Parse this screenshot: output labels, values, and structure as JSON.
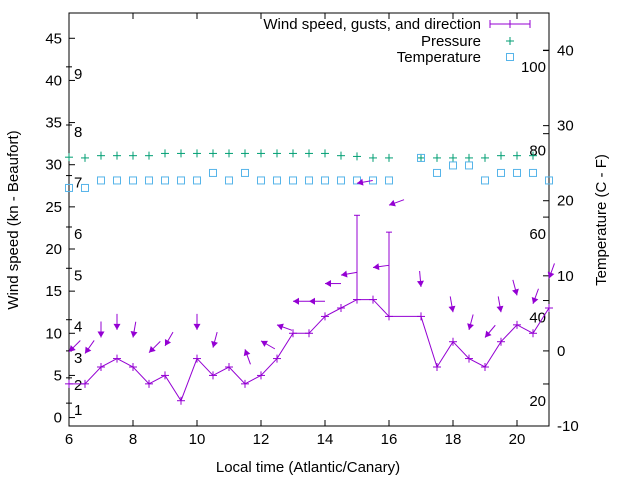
{
  "chart_data": {
    "type": "line",
    "title": "",
    "xlabel": "Local time (Atlantic/Canary)",
    "ylabel": "Wind speed (kn - Beaufort)",
    "y2label": "Temperature (C - F)",
    "xlim": [
      6,
      21
    ],
    "ylim": [
      -1,
      48
    ],
    "y2lim": [
      -10,
      45
    ],
    "xticks": [
      6,
      8,
      10,
      12,
      14,
      16,
      18,
      20
    ],
    "yticks": [
      0,
      5,
      10,
      15,
      20,
      25,
      30,
      35,
      40,
      45
    ],
    "y2ticks": [
      -10,
      0,
      10,
      20,
      30,
      40
    ],
    "beaufort_labels": [
      {
        "label": "1",
        "kn": 1
      },
      {
        "label": "2",
        "kn": 4
      },
      {
        "label": "3",
        "kn": 7.2
      },
      {
        "label": "4",
        "kn": 10.9
      },
      {
        "label": "5",
        "kn": 17
      },
      {
        "label": "6",
        "kn": 21.9
      },
      {
        "label": "7",
        "kn": 28
      },
      {
        "label": "8",
        "kn": 34
      },
      {
        "label": "9",
        "kn": 40.9
      }
    ],
    "fahrenheit_labels": [
      "20",
      "40",
      "60",
      "80",
      "100"
    ],
    "legend": {
      "placement": "top-right",
      "entries": [
        "Wind speed, gusts, and direction",
        "Pressure",
        "Temperature"
      ]
    },
    "colors": {
      "wind": "#9400d3",
      "pressure": "#009e73",
      "temperature": "#56b4e9"
    },
    "wind": {
      "x": [
        6,
        6.5,
        7,
        7.5,
        8,
        8.5,
        9,
        9.5,
        10,
        10.5,
        11,
        11.5,
        12,
        12.5,
        13,
        13.5,
        14,
        14.5,
        15,
        15.5,
        16,
        17,
        17.5,
        18,
        18.5,
        19,
        19.5,
        20,
        20.5,
        21
      ],
      "speed": [
        4,
        4,
        6,
        7,
        6,
        4,
        5,
        2,
        7,
        5,
        6,
        4,
        5,
        7,
        10,
        10,
        12,
        13,
        14,
        14,
        12,
        12,
        6,
        9,
        7,
        6,
        9,
        11,
        10,
        13
      ],
      "gusts": [
        {
          "x": 15,
          "value": 24
        },
        {
          "x": 16,
          "value": 22
        }
      ]
    },
    "direction_arrows": [
      {
        "x": 6,
        "level": 7.8,
        "toward_deg": 225
      },
      {
        "x": 6.5,
        "level": 7.6,
        "toward_deg": 215
      },
      {
        "x": 7,
        "level": 9.5,
        "toward_deg": 180
      },
      {
        "x": 7.5,
        "level": 10.4,
        "toward_deg": 180
      },
      {
        "x": 8,
        "level": 9.5,
        "toward_deg": 190
      },
      {
        "x": 8.5,
        "level": 7.7,
        "toward_deg": 225
      },
      {
        "x": 9,
        "level": 8.5,
        "toward_deg": 210
      },
      {
        "x": 10,
        "level": 10.4,
        "toward_deg": 180
      },
      {
        "x": 10.5,
        "level": 8.3,
        "toward_deg": 195
      },
      {
        "x": 11.5,
        "level": 8.1,
        "toward_deg": 340
      },
      {
        "x": 12,
        "level": 9.1,
        "toward_deg": 300
      },
      {
        "x": 12.5,
        "level": 11,
        "toward_deg": 290
      },
      {
        "x": 13,
        "level": 13.8,
        "toward_deg": 270
      },
      {
        "x": 13.5,
        "level": 13.8,
        "toward_deg": 270
      },
      {
        "x": 14,
        "level": 15.9,
        "toward_deg": 270
      },
      {
        "x": 14.5,
        "level": 16.9,
        "toward_deg": 260
      },
      {
        "x": 15,
        "level": 27.8,
        "toward_deg": 260
      },
      {
        "x": 15.5,
        "level": 17.8,
        "toward_deg": 262
      },
      {
        "x": 16,
        "level": 25.2,
        "toward_deg": 250
      },
      {
        "x": 17,
        "level": 15.5,
        "toward_deg": 175
      },
      {
        "x": 18,
        "level": 12.5,
        "toward_deg": 170
      },
      {
        "x": 18.5,
        "level": 10.4,
        "toward_deg": 195
      },
      {
        "x": 19,
        "level": 9.5,
        "toward_deg": 220
      },
      {
        "x": 19.5,
        "level": 12.5,
        "toward_deg": 170
      },
      {
        "x": 20,
        "level": 14.5,
        "toward_deg": 165
      },
      {
        "x": 20.5,
        "level": 13.5,
        "toward_deg": 200
      },
      {
        "x": 21,
        "level": 16.5,
        "toward_deg": 200
      }
    ],
    "pressure": {
      "x": [
        6,
        6.5,
        7,
        7.5,
        8,
        8.5,
        9,
        9.5,
        10,
        10.5,
        11,
        11.5,
        12,
        12.5,
        13,
        13.5,
        14,
        14.5,
        15,
        15.5,
        16,
        17,
        17.5,
        18,
        18.5,
        19,
        19.5,
        20,
        20.5
      ],
      "y2": [
        25.8,
        25.7,
        26.0,
        26.0,
        26.0,
        26.0,
        26.3,
        26.3,
        26.3,
        26.3,
        26.3,
        26.3,
        26.3,
        26.3,
        26.3,
        26.3,
        26.3,
        26.0,
        25.9,
        25.7,
        25.7,
        25.7,
        25.7,
        25.7,
        25.7,
        25.7,
        26.0,
        26.0,
        26.0
      ]
    },
    "temperature": {
      "x": [
        6,
        6.5,
        7,
        7.5,
        8,
        8.5,
        9,
        9.5,
        10,
        10.5,
        11,
        11.5,
        12,
        12.5,
        13,
        13.5,
        14,
        14.5,
        15,
        15.5,
        16,
        17,
        17.5,
        18,
        18.5,
        19,
        19.5,
        20,
        20.5,
        21
      ],
      "celsius": [
        21.7,
        21.7,
        22.7,
        22.7,
        22.7,
        22.7,
        22.7,
        22.7,
        22.7,
        23.7,
        22.7,
        23.7,
        22.7,
        22.7,
        22.7,
        22.7,
        22.7,
        22.7,
        22.7,
        22.7,
        22.7,
        25.7,
        23.7,
        24.7,
        24.7,
        22.7,
        23.7,
        23.7,
        23.7,
        22.7
      ]
    }
  }
}
